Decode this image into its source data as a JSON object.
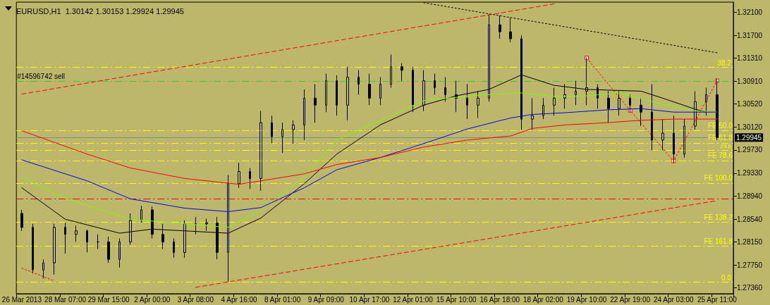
{
  "chart_data": {
    "type": "candlestick",
    "title": "EURUSD,H1  1.30142 1.30153 1.29924 1.29945",
    "color": "#000000",
    "grid": false,
    "marker": "none",
    "categories": [
      "26 Mar 2013",
      null,
      null,
      null,
      "28 Mar 07:00",
      null,
      null,
      null,
      "29 Mar 15:00",
      null,
      null,
      null,
      "2 Apr 00:00",
      null,
      null,
      null,
      "3 Apr 08:00",
      null,
      null,
      null,
      "4 Apr 16:00",
      null,
      null,
      null,
      "8 Apr 01:00",
      null,
      null,
      null,
      "9 Apr 09:00",
      null,
      null,
      null,
      "10 Apr 17:00",
      null,
      null,
      null,
      "12 Apr 01:00",
      null,
      null,
      null,
      "15 Apr 10:00",
      null,
      null,
      null,
      "16 Apr 18:00",
      null,
      null,
      null,
      "18 Apr 02:00",
      null,
      null,
      null,
      "19 Apr 10:00",
      null,
      null,
      null,
      "22 Apr 19:00",
      null,
      null,
      null,
      "24 Apr 03:00",
      null,
      null,
      null,
      "25 Apr 11:00",
      null
    ],
    "ohlc": [
      [
        1.2864,
        1.287,
        1.2834,
        1.284
      ],
      [
        1.284,
        1.2846,
        1.2761,
        1.2767
      ],
      [
        1.2767,
        1.2785,
        1.2752,
        1.2779
      ],
      [
        1.2779,
        1.2846,
        1.2759,
        1.284
      ],
      [
        1.284,
        1.2848,
        1.2795,
        1.2828
      ],
      [
        1.2828,
        1.2843,
        1.2815,
        1.2834
      ],
      [
        1.2834,
        1.2836,
        1.2797,
        1.2815
      ],
      [
        1.2815,
        1.2828,
        1.2803,
        1.2815
      ],
      [
        1.2815,
        1.2824,
        1.2779,
        1.2785
      ],
      [
        1.2785,
        1.2821,
        1.2771,
        1.2815
      ],
      [
        1.2815,
        1.2864,
        1.281,
        1.2852
      ],
      [
        1.2852,
        1.2877,
        1.2848,
        1.287
      ],
      [
        1.287,
        1.2876,
        1.2821,
        1.2828
      ],
      [
        1.2828,
        1.2846,
        1.2803,
        1.2815
      ],
      [
        1.2815,
        1.2821,
        1.2788,
        1.2797
      ],
      [
        1.2797,
        1.2852,
        1.2788,
        1.2846
      ],
      [
        1.2846,
        1.2858,
        1.2828,
        1.2846
      ],
      [
        1.2846,
        1.2855,
        1.2834,
        1.2848
      ],
      [
        1.2848,
        1.2858,
        1.2785,
        1.2797
      ],
      [
        1.2797,
        1.293,
        1.2747,
        1.2915
      ],
      [
        1.2915,
        1.2951,
        1.2908,
        1.2936
      ],
      [
        1.2936,
        1.2942,
        1.2906,
        1.2924
      ],
      [
        1.2924,
        1.304,
        1.2903,
        1.302
      ],
      [
        1.302,
        1.3032,
        1.2984,
        1.2996
      ],
      [
        1.2996,
        1.302,
        1.2968,
        1.3008
      ],
      [
        1.3008,
        1.3024,
        1.2984,
        1.3016
      ],
      [
        1.3016,
        1.3077,
        1.299,
        1.3062
      ],
      [
        1.3062,
        1.3086,
        1.302,
        1.305
      ],
      [
        1.305,
        1.3104,
        1.3038,
        1.3092
      ],
      [
        1.3092,
        1.3101,
        1.3032,
        1.305
      ],
      [
        1.305,
        1.3116,
        1.3024,
        1.3098
      ],
      [
        1.3098,
        1.311,
        1.3068,
        1.3086
      ],
      [
        1.3086,
        1.3104,
        1.305,
        1.3062
      ],
      [
        1.3062,
        1.3098,
        1.305,
        1.3086
      ],
      [
        1.3086,
        1.3137,
        1.308,
        1.3116
      ],
      [
        1.3116,
        1.3122,
        1.3092,
        1.311
      ],
      [
        1.311,
        1.3116,
        1.3038,
        1.305
      ],
      [
        1.305,
        1.311,
        1.304,
        1.3092
      ],
      [
        1.3092,
        1.3104,
        1.3068,
        1.308
      ],
      [
        1.308,
        1.3098,
        1.3056,
        1.3068
      ],
      [
        1.3068,
        1.3092,
        1.3038,
        1.3062
      ],
      [
        1.3062,
        1.3086,
        1.3026,
        1.305
      ],
      [
        1.305,
        1.3074,
        1.3028,
        1.3062
      ],
      [
        1.3062,
        1.3206,
        1.3056,
        1.3188
      ],
      [
        1.3188,
        1.3204,
        1.3164,
        1.3176
      ],
      [
        1.3176,
        1.32,
        1.3158,
        1.3164
      ],
      [
        1.3164,
        1.317,
        1.3008,
        1.3026
      ],
      [
        1.3026,
        1.3062,
        1.3008,
        1.3032
      ],
      [
        1.3032,
        1.3062,
        1.3026,
        1.305
      ],
      [
        1.305,
        1.308,
        1.3032,
        1.3062
      ],
      [
        1.3062,
        1.3086,
        1.3044,
        1.3068
      ],
      [
        1.3068,
        1.3092,
        1.305,
        1.3074
      ],
      [
        1.3074,
        1.3132,
        1.305,
        1.308
      ],
      [
        1.308,
        1.3086,
        1.3044,
        1.3062
      ],
      [
        1.3062,
        1.3074,
        1.302,
        1.3044
      ],
      [
        1.3044,
        1.3074,
        1.3032,
        1.3062
      ],
      [
        1.3062,
        1.3068,
        1.3038,
        1.305
      ],
      [
        1.305,
        1.3062,
        1.3014,
        1.3038
      ],
      [
        1.3038,
        1.3086,
        1.2972,
        1.299
      ],
      [
        1.299,
        1.3026,
        1.2972,
        1.3002
      ],
      [
        1.3002,
        1.3032,
        1.2951,
        1.2966
      ],
      [
        1.2966,
        1.3026,
        1.296,
        1.3014
      ],
      [
        1.3014,
        1.3074,
        1.3008,
        1.3056
      ],
      [
        1.3056,
        1.308,
        1.3032,
        1.3068
      ],
      [
        1.3068,
        1.3095,
        1.299,
        1.29945
      ],
      null
    ],
    "series": [
      {
        "type": "line",
        "color": "#000000",
        "line_style": "solid",
        "values": [
          1.2908,
          null,
          null,
          null,
          1.2854,
          null,
          null,
          null,
          null,
          1.283,
          null,
          null,
          1.2837,
          null,
          null,
          null,
          null,
          null,
          null,
          1.283,
          null,
          null,
          1.2856,
          null,
          null,
          null,
          1.2915,
          null,
          null,
          1.2966,
          null,
          null,
          null,
          1.3016,
          null,
          null,
          null,
          1.305,
          null,
          null,
          1.3066,
          null,
          null,
          1.3077,
          null,
          null,
          1.3102,
          null,
          null,
          1.3084,
          null,
          null,
          1.3077,
          null,
          null,
          null,
          null,
          1.3074,
          null,
          1.3062,
          null,
          null,
          1.3043,
          1.3038,
          null,
          null
        ]
      },
      {
        "type": "line",
        "color": "#7cfc00",
        "line_style": "solid",
        "values": [
          1.2926,
          null,
          null,
          null,
          1.289,
          null,
          null,
          null,
          null,
          null,
          1.2854,
          null,
          null,
          null,
          null,
          1.2846,
          null,
          null,
          null,
          1.284,
          null,
          null,
          1.287,
          null,
          null,
          null,
          1.2927,
          null,
          null,
          1.299,
          null,
          null,
          null,
          null,
          1.3032,
          null,
          null,
          1.3058,
          null,
          null,
          null,
          null,
          1.3067,
          null,
          null,
          null,
          1.3071,
          null,
          null,
          1.3065,
          null,
          null,
          1.3066,
          null,
          null,
          1.3071,
          null,
          null,
          1.3056,
          null,
          null,
          null,
          1.304,
          null,
          1.3038,
          null
        ]
      },
      {
        "type": "line",
        "color": "#0000ff",
        "line_style": "solid",
        "values": [
          1.2956,
          null,
          null,
          null,
          null,
          null,
          1.292,
          null,
          null,
          null,
          1.2889,
          null,
          null,
          null,
          null,
          1.2873,
          null,
          null,
          null,
          1.2867,
          null,
          null,
          1.2874,
          null,
          null,
          null,
          1.2908,
          null,
          null,
          1.2939,
          null,
          null,
          null,
          1.296,
          null,
          null,
          null,
          1.2984,
          null,
          null,
          null,
          1.3009,
          null,
          null,
          null,
          1.3028,
          null,
          1.3034,
          null,
          null,
          1.3037,
          null,
          null,
          null,
          1.3042,
          null,
          null,
          1.3044,
          null,
          null,
          1.3038,
          null,
          null,
          null,
          1.3038,
          null
        ]
      },
      {
        "type": "line",
        "color": "#ff0000",
        "line_style": "solid",
        "values": [
          1.3006,
          null,
          null,
          null,
          null,
          null,
          1.2966,
          null,
          null,
          null,
          1.2942,
          null,
          null,
          null,
          null,
          1.2924,
          null,
          null,
          null,
          null,
          1.2914,
          null,
          1.292,
          null,
          null,
          null,
          1.2932,
          null,
          null,
          1.2948,
          null,
          null,
          null,
          1.296,
          null,
          null,
          null,
          1.2978,
          null,
          null,
          null,
          1.299,
          null,
          null,
          null,
          1.2997,
          null,
          1.301,
          null,
          null,
          1.3016,
          null,
          null,
          null,
          1.302,
          null,
          null,
          1.3024,
          null,
          null,
          1.3026,
          null,
          null,
          null,
          1.3026,
          null
        ]
      },
      {
        "type": "line",
        "color": "#ff0000",
        "line_style": "dashed",
        "values": [
          1.3069,
          null,
          null,
          null,
          null,
          null,
          null,
          null,
          null,
          null,
          null,
          null,
          null,
          null,
          null,
          null,
          null,
          null,
          null,
          null,
          null,
          null,
          null,
          null,
          null,
          null,
          null,
          null,
          null,
          null,
          null,
          null,
          null,
          null,
          null,
          null,
          null,
          null,
          null,
          null,
          null,
          null,
          null,
          null,
          null,
          null,
          null,
          null,
          null,
          1.3224,
          null,
          null,
          null,
          null,
          null,
          null,
          null,
          null,
          null,
          null,
          null,
          null,
          null,
          null,
          null,
          null
        ]
      },
      {
        "type": "line",
        "color": "#ff0000",
        "line_style": "dashed",
        "values": [
          null,
          null,
          null,
          null,
          null,
          null,
          null,
          null,
          null,
          null,
          null,
          null,
          null,
          null,
          null,
          null,
          1.2737,
          null,
          null,
          null,
          null,
          null,
          null,
          null,
          null,
          null,
          null,
          null,
          null,
          null,
          null,
          null,
          null,
          null,
          null,
          null,
          null,
          null,
          null,
          null,
          null,
          null,
          null,
          null,
          null,
          null,
          null,
          null,
          null,
          null,
          null,
          null,
          null,
          null,
          null,
          null,
          null,
          null,
          null,
          null,
          null,
          null,
          null,
          null,
          1.2886,
          null
        ]
      },
      {
        "type": "line",
        "color": "#000000",
        "line_style": "dotted",
        "values": [
          null,
          null,
          null,
          null,
          null,
          null,
          null,
          null,
          null,
          null,
          null,
          null,
          null,
          null,
          null,
          null,
          null,
          null,
          null,
          null,
          null,
          null,
          null,
          null,
          null,
          null,
          null,
          null,
          null,
          null,
          null,
          null,
          null,
          null,
          null,
          null,
          null,
          1.3226,
          null,
          null,
          null,
          null,
          null,
          null,
          null,
          null,
          null,
          null,
          null,
          null,
          null,
          null,
          null,
          null,
          null,
          null,
          null,
          null,
          null,
          null,
          null,
          null,
          null,
          null,
          1.314,
          null
        ]
      },
      {
        "type": "line",
        "color": "#ff0000",
        "line_style": "dotted",
        "marker": "square",
        "values": [
          null,
          null,
          null,
          null,
          null,
          null,
          null,
          null,
          null,
          null,
          null,
          null,
          null,
          null,
          null,
          null,
          null,
          null,
          null,
          null,
          null,
          null,
          null,
          null,
          null,
          null,
          null,
          null,
          null,
          null,
          null,
          null,
          null,
          null,
          null,
          null,
          null,
          null,
          null,
          null,
          null,
          null,
          null,
          null,
          null,
          null,
          null,
          null,
          null,
          null,
          null,
          null,
          1.3131,
          null,
          null,
          null,
          1.3041,
          null,
          null,
          null,
          1.2954,
          null,
          null,
          null,
          1.3092,
          null
        ]
      },
      {
        "type": "line",
        "color": "#ff0000",
        "line_style": "dotted",
        "values": [
          1.277,
          null,
          null,
          1.2748,
          null,
          null,
          null,
          null,
          null,
          null,
          null,
          null,
          null,
          null,
          null,
          null,
          null,
          null,
          null,
          null,
          null,
          null,
          null,
          null,
          null,
          null,
          null,
          null,
          null,
          null,
          null,
          null,
          null,
          null,
          null,
          null,
          null,
          null,
          null,
          null,
          null,
          null,
          null,
          null,
          null,
          null,
          null,
          null,
          null,
          null,
          null,
          null,
          null,
          null,
          null,
          null,
          null,
          null,
          null,
          null,
          null,
          null,
          null,
          null,
          null,
          null
        ]
      }
    ],
    "ref_lines": [
      {
        "axis": "y",
        "value": 1.3091,
        "label": "#14596742 sell",
        "color": "#32cd32",
        "line_style": "dashed"
      },
      {
        "axis": "y",
        "value": 1.3115,
        "color": "#ffff00",
        "line_style": "dashed"
      },
      {
        "axis": "y",
        "value": 1.2973,
        "color": "#ffff00",
        "line_style": "dashed"
      },
      {
        "axis": "y",
        "value": 1.2746,
        "color": "#ffff00",
        "line_style": "dashed"
      },
      {
        "axis": "y",
        "value": 1.2889,
        "color": "#ff0000",
        "line_style": "dashed"
      },
      {
        "axis": "y",
        "value": 1.3006,
        "label": "FE 50.0",
        "color": "#ffff00",
        "line_style": "dashed"
      },
      {
        "axis": "y",
        "value": 1.2985,
        "label": "FE 61.8",
        "color": "#ffff00",
        "line_style": "dashed"
      },
      {
        "axis": "y",
        "value": 1.2955,
        "label": "FE 78.6",
        "color": "#ffff00",
        "line_style": "dashed"
      },
      {
        "axis": "y",
        "value": 1.2916,
        "label": "FE 100.0",
        "color": "#ffff00",
        "line_style": "dashed"
      },
      {
        "axis": "y",
        "value": 1.2849,
        "label": "FE 138.2",
        "color": "#ffff00",
        "line_style": "dashed"
      },
      {
        "axis": "y",
        "value": 1.2808,
        "label": "FE 161.8",
        "color": "#ffff00",
        "line_style": "dashed"
      },
      {
        "axis": "y",
        "value": 1.29945,
        "label": "1.29945",
        "color": "#778899",
        "line_style": "solid"
      }
    ],
    "annotations": [
      {
        "text": "38.2",
        "y": 1.3115
      },
      {
        "text": "23.6",
        "y": 1.2973
      },
      {
        "text": "0.0",
        "y": 1.2746
      }
    ],
    "ylim": [
      1.2726,
      1.3227
    ],
    "yticks": [
      {
        "value": 1.321,
        "label": "1.32100"
      },
      {
        "value": 1.317,
        "label": "1.31700"
      },
      {
        "value": 1.3131,
        "label": "1.31310"
      },
      {
        "value": 1.3091,
        "label": "1.30910"
      },
      {
        "value": 1.3052,
        "label": "1.30520"
      },
      {
        "value": 1.3012,
        "label": "1.30120"
      },
      {
        "value": 1.2973,
        "label": "1.29730"
      },
      {
        "value": 1.2933,
        "label": "1.29330"
      },
      {
        "value": 1.2894,
        "label": "1.28940"
      },
      {
        "value": 1.2854,
        "label": "1.28540"
      },
      {
        "value": 1.2815,
        "label": "1.28150"
      },
      {
        "value": 1.2775,
        "label": "1.27750"
      },
      {
        "value": 1.2736,
        "label": "1.27360"
      }
    ]
  }
}
